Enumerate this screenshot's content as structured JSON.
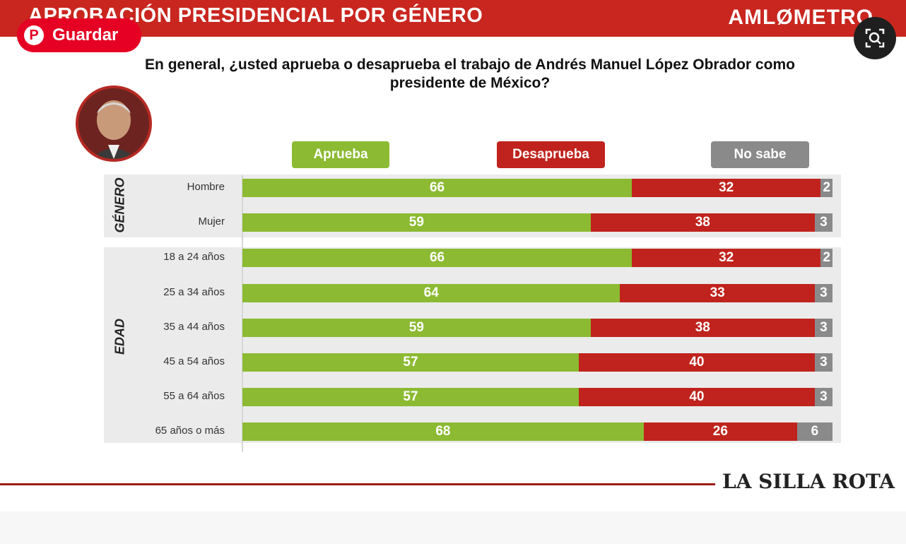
{
  "header": {
    "title": "APROBACIÓN PRESIDENCIAL POR GÉNERO",
    "brand": "AMLØMETRO"
  },
  "overlay": {
    "save_label": "Guardar",
    "save_icon": "pinterest-icon",
    "lens_icon": "visual-search-icon"
  },
  "footer": {
    "logo_text": "LA SILLA ROTA"
  },
  "chart_data": {
    "type": "bar",
    "orientation": "horizontal",
    "stacked": true,
    "title": "En general, ¿usted aprueba o desaprueba el trabajo de Andrés Manuel López Obrador como presidente de México?",
    "legend": [
      "Aprueba",
      "Desaprueba",
      "No sabe"
    ],
    "legend_position": "top",
    "colors": {
      "Aprueba": "#8cba32",
      "Desaprueba": "#c0231d",
      "No sabe": "#8a8a8a"
    },
    "groups": [
      {
        "name": "GÉNERO",
        "categories": [
          "Hombre",
          "Mujer"
        ],
        "series": [
          {
            "name": "Aprueba",
            "values": [
              66,
              59
            ]
          },
          {
            "name": "Desaprueba",
            "values": [
              32,
              38
            ]
          },
          {
            "name": "No sabe",
            "values": [
              2,
              3
            ]
          }
        ]
      },
      {
        "name": "EDAD",
        "categories": [
          "18 a 24 años",
          "25 a 34 años",
          "35 a 44 años",
          "45 a 54 años",
          "55 a 64 años",
          "65 años o más"
        ],
        "series": [
          {
            "name": "Aprueba",
            "values": [
              66,
              64,
              59,
              57,
              57,
              68
            ]
          },
          {
            "name": "Desaprueba",
            "values": [
              32,
              33,
              38,
              40,
              40,
              26
            ]
          },
          {
            "name": "No sabe",
            "values": [
              2,
              3,
              3,
              3,
              3,
              6
            ]
          }
        ]
      }
    ],
    "xlim": [
      0,
      100
    ]
  }
}
